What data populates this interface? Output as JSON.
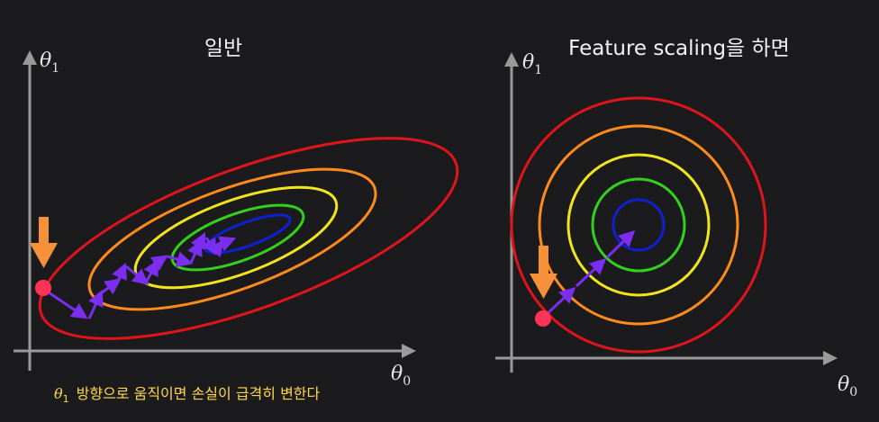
{
  "colors": {
    "background": "#1b1b1d",
    "axis": "#9a9a9a",
    "contours": [
      "#e0141c",
      "#ff8c1a",
      "#f2e41e",
      "#33d11d",
      "#1020d0"
    ],
    "path_arrow": "#7b2df0",
    "start_point": "#ff3355",
    "indicator_arrow": "#f5913a",
    "caption": "#ffd84a"
  },
  "left_panel": {
    "title": "일반",
    "y_axis_label": "θ",
    "y_axis_subscript": "1",
    "x_axis_label": "θ",
    "x_axis_subscript": "0",
    "contour_shape": "elongated-tilted-ellipses",
    "caption_theta": "θ",
    "caption_subscript": "1",
    "caption_text": "방향으로 움직이면 손실이 급격히 변한다"
  },
  "right_panel": {
    "title": "Feature scaling을 하면",
    "y_axis_label": "θ",
    "y_axis_subscript": "1",
    "x_axis_label": "θ",
    "x_axis_subscript": "0",
    "contour_shape": "concentric-circles"
  }
}
